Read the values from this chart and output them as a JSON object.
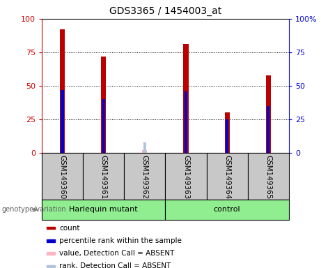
{
  "title": "GDS3365 / 1454003_at",
  "samples": [
    "GSM149360",
    "GSM149361",
    "GSM149362",
    "GSM149363",
    "GSM149364",
    "GSM149365"
  ],
  "count_values": [
    92,
    72,
    null,
    81,
    30,
    58
  ],
  "percentile_values": [
    47,
    40,
    null,
    46,
    25,
    35
  ],
  "absent_count_values": [
    null,
    null,
    2,
    null,
    null,
    null
  ],
  "absent_rank_values": [
    null,
    null,
    8,
    null,
    null,
    null
  ],
  "groups": [
    {
      "label": "Harlequin mutant",
      "start": 0,
      "end": 3,
      "color": "#90ee90"
    },
    {
      "label": "control",
      "start": 3,
      "end": 6,
      "color": "#90ee90"
    }
  ],
  "genotype_label": "genotype/variation",
  "ylim_left": [
    0,
    100
  ],
  "ylim_right": [
    0,
    100
  ],
  "yticks": [
    0,
    25,
    50,
    75,
    100
  ],
  "bar_width": 0.12,
  "pct_bar_width": 0.07,
  "count_color": "#bb0000",
  "percentile_color": "#0000cc",
  "absent_count_color": "#ffb6c1",
  "absent_rank_color": "#b0c4de",
  "legend_items": [
    {
      "label": "count",
      "color": "#bb0000"
    },
    {
      "label": "percentile rank within the sample",
      "color": "#0000cc"
    },
    {
      "label": "value, Detection Call = ABSENT",
      "color": "#ffb6c1"
    },
    {
      "label": "rank, Detection Call = ABSENT",
      "color": "#b0c4de"
    }
  ],
  "sample_box_color": "#c8c8c8",
  "plot_bg_color": "#ffffff",
  "left_axis_color": "#cc0000",
  "right_axis_color": "#0000cc"
}
